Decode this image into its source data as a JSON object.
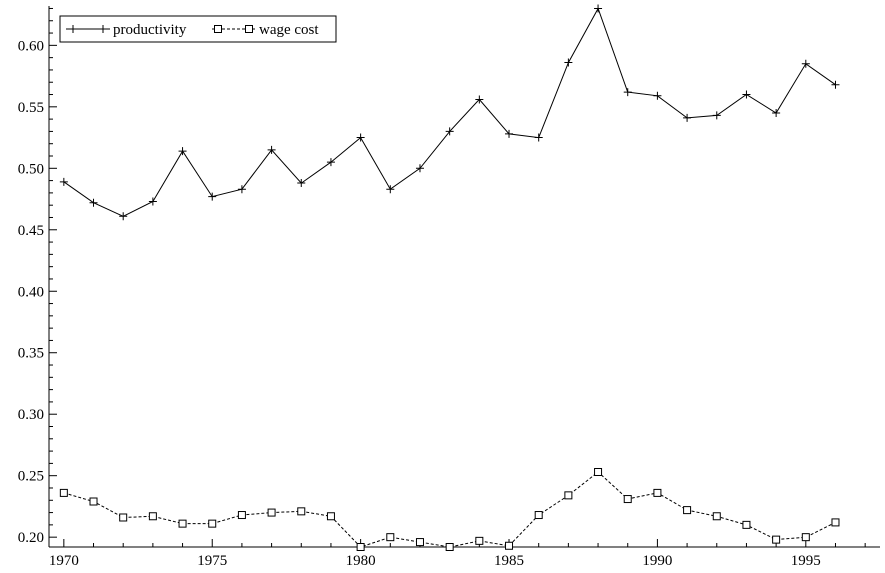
{
  "chart_data": {
    "type": "line",
    "title": "",
    "xlabel": "",
    "ylabel": "",
    "xlim": [
      1969.5,
      1997.5
    ],
    "ylim": [
      0.192,
      0.632
    ],
    "x_ticks": [
      1970,
      1975,
      1980,
      1985,
      1990,
      1995
    ],
    "x_tick_labels": [
      "1970",
      "1975",
      "1980",
      "1985",
      "1990",
      "1995"
    ],
    "y_ticks": [
      0.2,
      0.25,
      0.3,
      0.35,
      0.4,
      0.45,
      0.5,
      0.55,
      0.6
    ],
    "y_tick_labels": [
      "0.20",
      "0.25",
      "0.30",
      "0.35",
      "0.40",
      "0.45",
      "0.50",
      "0.55",
      "0.60"
    ],
    "grid": false,
    "legend_position": "top-left",
    "x": [
      1970,
      1971,
      1972,
      1973,
      1974,
      1975,
      1976,
      1977,
      1978,
      1979,
      1980,
      1981,
      1982,
      1983,
      1984,
      1985,
      1986,
      1987,
      1988,
      1989,
      1990,
      1991,
      1992,
      1993,
      1994,
      1995,
      1996
    ],
    "series": [
      {
        "name": "productivity",
        "marker": "plus",
        "line_style": "solid",
        "values": [
          0.489,
          0.472,
          0.461,
          0.473,
          0.514,
          0.477,
          0.483,
          0.515,
          0.488,
          0.505,
          0.525,
          0.483,
          0.5,
          0.53,
          0.556,
          0.528,
          0.525,
          0.586,
          0.63,
          0.562,
          0.559,
          0.541,
          0.543,
          0.56,
          0.545,
          0.585,
          0.568
        ]
      },
      {
        "name": "wage cost",
        "marker": "square",
        "line_style": "dashed",
        "values": [
          0.236,
          0.229,
          0.216,
          0.217,
          0.211,
          0.211,
          0.218,
          0.22,
          0.221,
          0.217,
          0.192,
          0.2,
          0.196,
          0.192,
          0.197,
          0.193,
          0.218,
          0.234,
          0.253,
          0.231,
          0.236,
          0.222,
          0.217,
          0.21,
          0.198,
          0.2,
          0.212
        ]
      }
    ]
  }
}
